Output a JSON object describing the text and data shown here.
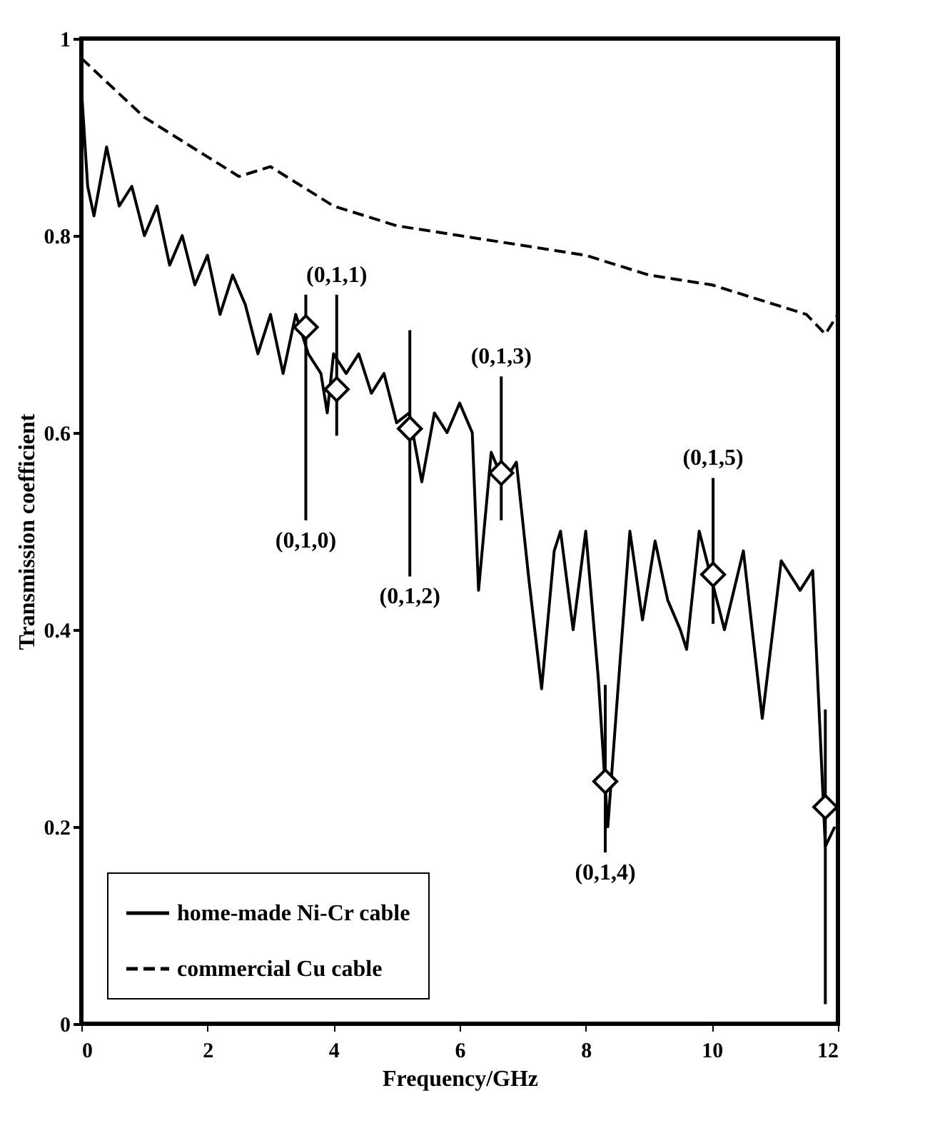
{
  "chart_data": {
    "type": "line",
    "xlabel": "Frequency/GHz",
    "ylabel": "Transmission coefficient",
    "xlim": [
      0,
      12
    ],
    "ylim": [
      0,
      1
    ],
    "xticks": [
      0,
      2,
      4,
      6,
      8,
      10,
      12
    ],
    "yticks": [
      0,
      0.2,
      0.4,
      0.6,
      0.8,
      1
    ],
    "legend": "bottom left",
    "series": [
      {
        "name": "home-made Ni-Cr cable",
        "color": "#000000",
        "line_style": "solid",
        "x": [
          0,
          0.1,
          0.2,
          0.4,
          0.6,
          0.8,
          1.0,
          1.2,
          1.4,
          1.6,
          1.8,
          2.0,
          2.2,
          2.4,
          2.6,
          2.8,
          3.0,
          3.2,
          3.4,
          3.6,
          3.8,
          3.9,
          4.0,
          4.2,
          4.4,
          4.6,
          4.8,
          5.0,
          5.2,
          5.4,
          5.6,
          5.8,
          6.0,
          6.2,
          6.3,
          6.5,
          6.7,
          6.9,
          7.1,
          7.3,
          7.5,
          7.6,
          7.8,
          8.0,
          8.2,
          8.35,
          8.5,
          8.7,
          8.9,
          9.1,
          9.3,
          9.5,
          9.6,
          9.8,
          10.0,
          10.2,
          10.5,
          10.8,
          11.1,
          11.4,
          11.6,
          11.8,
          11.95
        ],
        "values": [
          0.95,
          0.85,
          0.82,
          0.89,
          0.83,
          0.85,
          0.8,
          0.83,
          0.77,
          0.8,
          0.75,
          0.78,
          0.72,
          0.76,
          0.73,
          0.68,
          0.72,
          0.66,
          0.72,
          0.68,
          0.66,
          0.62,
          0.68,
          0.66,
          0.68,
          0.64,
          0.66,
          0.61,
          0.62,
          0.55,
          0.62,
          0.6,
          0.63,
          0.6,
          0.44,
          0.58,
          0.55,
          0.57,
          0.45,
          0.34,
          0.48,
          0.5,
          0.4,
          0.5,
          0.35,
          0.2,
          0.33,
          0.5,
          0.41,
          0.49,
          0.43,
          0.4,
          0.38,
          0.5,
          0.45,
          0.4,
          0.48,
          0.31,
          0.47,
          0.44,
          0.46,
          0.18,
          0.2
        ]
      },
      {
        "name": "commercial Cu cable",
        "color": "#000000",
        "line_style": "dashed",
        "x": [
          0,
          0.5,
          1,
          1.5,
          2,
          2.5,
          3,
          3.5,
          4,
          5,
          6,
          7,
          8,
          9,
          10,
          11,
          11.5,
          11.8,
          12
        ],
        "values": [
          0.98,
          0.95,
          0.92,
          0.9,
          0.88,
          0.86,
          0.87,
          0.85,
          0.83,
          0.81,
          0.8,
          0.79,
          0.78,
          0.76,
          0.75,
          0.73,
          0.72,
          0.7,
          0.72
        ]
      },
      {
        "type": "scatter",
        "color": "#000000",
        "marker": "diamond",
        "x": [
          3.56,
          4.05,
          5.21,
          6.66,
          8.31,
          10.02,
          11.8
        ],
        "values": [
          0.707,
          0.644,
          0.604,
          0.559,
          0.246,
          0.456,
          0.22
        ],
        "errors": [
          [
            0.511,
            0.74
          ],
          [
            0.597,
            0.74
          ],
          [
            0.454,
            0.704
          ],
          [
            0.511,
            0.657
          ],
          [
            0.174,
            0.344
          ],
          [
            0.406,
            0.554
          ],
          [
            0.02,
            0.319
          ]
        ]
      }
    ],
    "annotations": [
      "(0,1,0)",
      "(0,1,1)",
      "(0,1,2)",
      "(0,1,3)",
      "(0,1,4)",
      "(0,1,5)"
    ]
  }
}
